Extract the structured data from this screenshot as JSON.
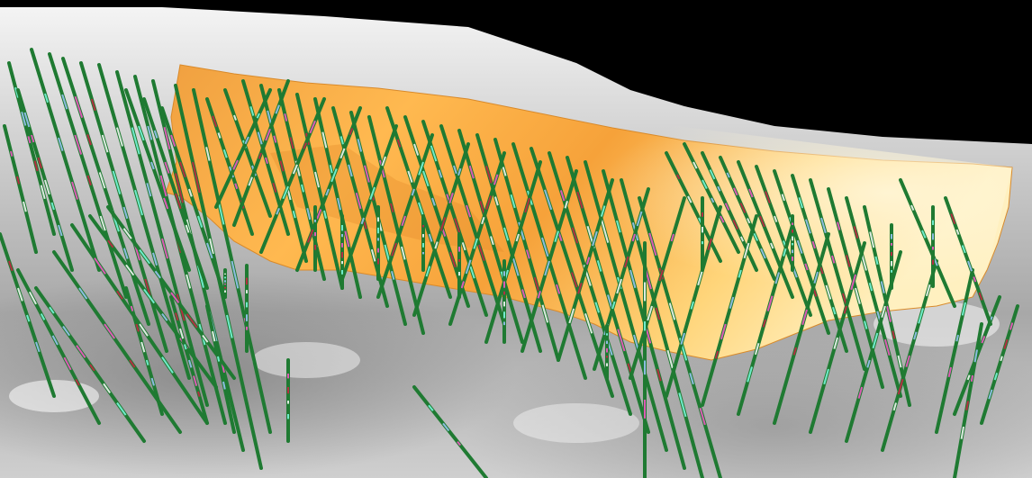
{
  "scene": {
    "background_sky": "#000000",
    "terrain_colors": [
      "#f2f2f2",
      "#bdbdbd",
      "#8a8a8a"
    ],
    "orebody_colors": [
      "#fff0b0",
      "#ffc466",
      "#e88e1e"
    ],
    "drillhole_color": "#1f7a32",
    "assay_colors": [
      "#7fffe6",
      "#a0c8ff",
      "#ff55cc",
      "#cc2244",
      "#ffffff"
    ]
  }
}
